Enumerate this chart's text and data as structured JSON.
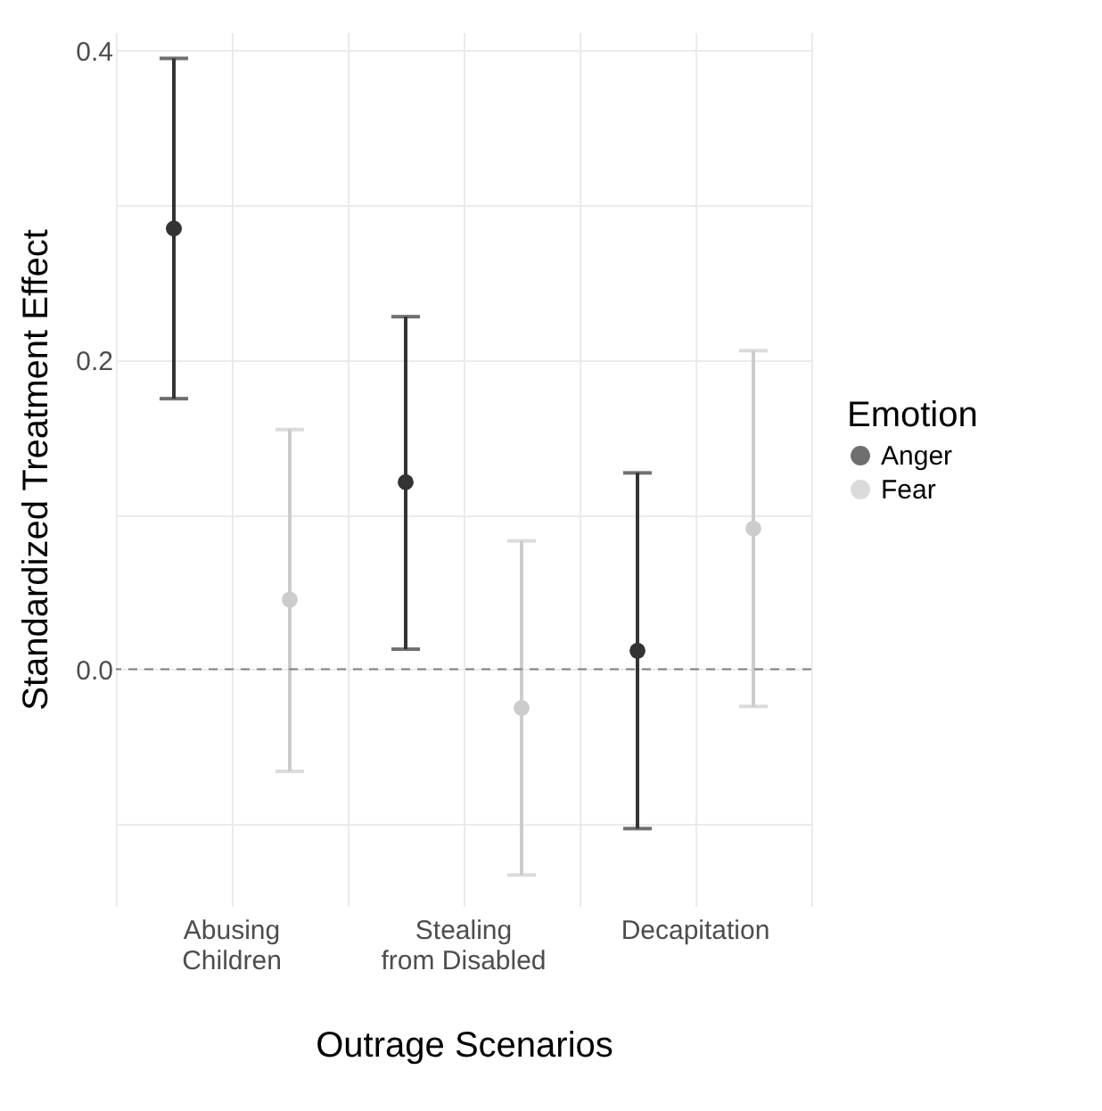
{
  "chart_data": {
    "type": "scatter",
    "xlabel": "Outrage Scenarios",
    "ylabel": "Standardized Treatment Effect",
    "legend_title": "Emotion",
    "categories": [
      "Abusing\nChildren",
      "Stealing\nfrom Disabled",
      "Decapitation"
    ],
    "series": [
      {
        "name": "Anger",
        "color": "#333333",
        "values": [
          0.285,
          0.121,
          0.012
        ],
        "errors": [
          [
            0.175,
            0.395
          ],
          [
            0.013,
            0.228
          ],
          [
            -0.103,
            0.127
          ]
        ]
      },
      {
        "name": "Fear",
        "color": "#cccccc",
        "values": [
          0.045,
          -0.025,
          0.091
        ],
        "errors": [
          [
            -0.066,
            0.155
          ],
          [
            -0.133,
            0.083
          ],
          [
            -0.024,
            0.206
          ]
        ]
      }
    ],
    "ylim": [
      -0.153,
      0.412
    ],
    "yticks": [
      {
        "value": -0.1,
        "label": null
      },
      {
        "value": 0,
        "label": "0.0"
      },
      {
        "value": 0.1,
        "label": null
      },
      0.2,
      {
        "value": 0.3,
        "label": null
      },
      0.4
    ],
    "ref_lines": [
      {
        "axis": "y",
        "value": 0,
        "color": "#7f7f7f",
        "line_style": "dashed"
      }
    ],
    "grid": true,
    "legend": "right",
    "marker": "circle"
  }
}
